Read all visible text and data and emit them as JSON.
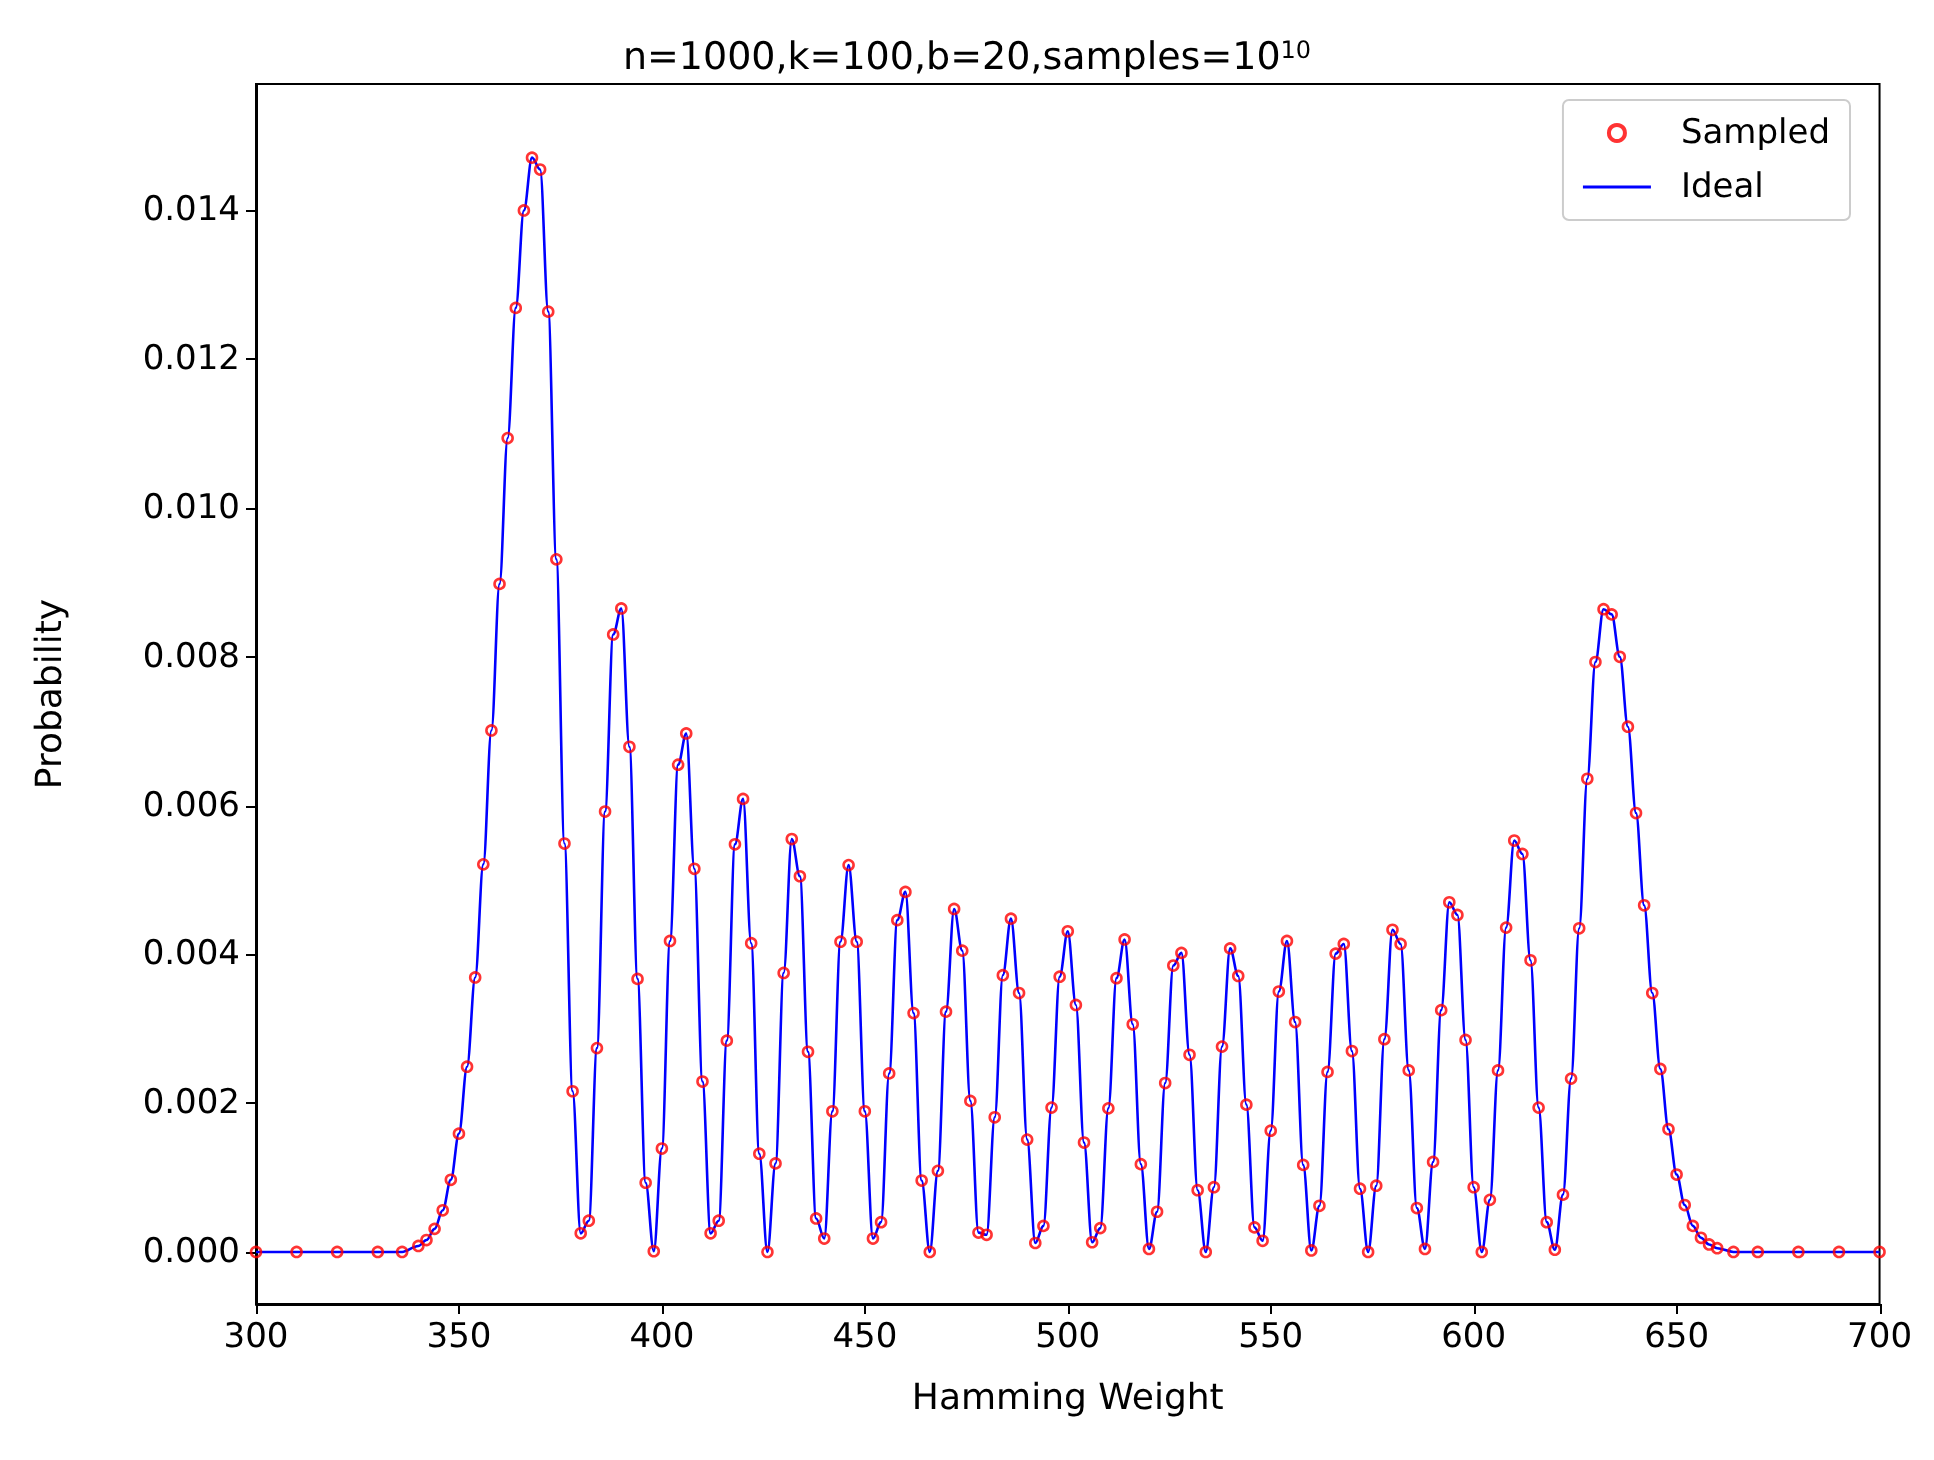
{
  "chart_data": {
    "type": "scatter",
    "title": "n=1000,k=100,b=20,samples=10$^{10}$",
    "xlabel": "Hamming Weight",
    "ylabel": "Probability",
    "x": [
      300,
      310,
      320,
      330,
      336,
      340,
      342,
      344,
      346,
      348,
      350,
      352,
      354,
      356,
      358,
      360,
      362,
      364,
      366,
      368,
      370,
      372,
      374,
      376,
      378,
      380,
      382,
      384,
      386,
      388,
      390,
      392,
      394,
      396,
      398,
      400,
      402,
      404,
      406,
      408,
      410,
      412,
      414,
      416,
      418,
      420,
      422,
      424,
      426,
      428,
      430,
      432,
      434,
      436,
      438,
      440,
      442,
      444,
      446,
      448,
      450,
      452,
      454,
      456,
      458,
      460,
      462,
      464,
      466,
      468,
      470,
      472,
      474,
      476,
      478,
      480,
      482,
      484,
      486,
      488,
      490,
      492,
      494,
      496,
      498,
      500,
      502,
      504,
      506,
      508,
      510,
      512,
      514,
      516,
      518,
      520,
      522,
      524,
      526,
      528,
      530,
      532,
      534,
      536,
      538,
      540,
      542,
      544,
      546,
      548,
      550,
      552,
      554,
      556,
      558,
      560,
      562,
      564,
      566,
      568,
      570,
      572,
      574,
      576,
      578,
      580,
      582,
      584,
      586,
      588,
      590,
      592,
      594,
      596,
      598,
      600,
      602,
      604,
      606,
      608,
      610,
      612,
      614,
      616,
      618,
      620,
      622,
      624,
      626,
      628,
      630,
      632,
      634,
      636,
      638,
      640,
      642,
      644,
      646,
      648,
      650,
      652,
      654,
      656,
      658,
      660,
      664,
      670,
      680,
      690,
      700
    ],
    "series": [
      {
        "name": "Sampled",
        "type": "scatter",
        "marker": "circle",
        "color": "#ff0000",
        "values": [
          0,
          0,
          0,
          0,
          0,
          8e-05,
          0.00016,
          0.00031,
          0.00056,
          0.00097,
          0.00159,
          0.00249,
          0.00369,
          0.00521,
          0.00701,
          0.00898,
          0.01094,
          0.01269,
          0.014,
          0.01471,
          0.01455,
          0.01264,
          0.00931,
          0.00549,
          0.00216,
          0.00025,
          0.00042,
          0.00274,
          0.00592,
          0.0083,
          0.00865,
          0.00679,
          0.00367,
          0.00093,
          1e-05,
          0.00139,
          0.00418,
          0.00655,
          0.00697,
          0.00515,
          0.00229,
          0.00025,
          0.00042,
          0.00284,
          0.00548,
          0.00609,
          0.00415,
          0.00132,
          0,
          0.00119,
          0.00375,
          0.00555,
          0.00505,
          0.00269,
          0.00045,
          0.00018,
          0.00189,
          0.00417,
          0.0052,
          0.00417,
          0.00189,
          0.00018,
          0.0004,
          0.0024,
          0.00446,
          0.00484,
          0.00321,
          0.00096,
          0,
          0.00109,
          0.00323,
          0.00461,
          0.00405,
          0.00203,
          0.00026,
          0.00023,
          0.00181,
          0.00372,
          0.00448,
          0.00348,
          0.00151,
          0.00012,
          0.00035,
          0.00194,
          0.0037,
          0.00431,
          0.00332,
          0.00147,
          0.00013,
          0.00032,
          0.00193,
          0.00368,
          0.0042,
          0.00306,
          0.00118,
          4e-05,
          0.00054,
          0.00227,
          0.00385,
          0.00402,
          0.00265,
          0.00083,
          0,
          0.00087,
          0.00276,
          0.00408,
          0.00371,
          0.00198,
          0.00033,
          0.00015,
          0.00163,
          0.0035,
          0.00418,
          0.00309,
          0.00117,
          2e-05,
          0.00062,
          0.00242,
          0.00401,
          0.00414,
          0.0027,
          0.00085,
          0,
          0.00089,
          0.00286,
          0.00433,
          0.00414,
          0.00244,
          0.00059,
          4e-05,
          0.00121,
          0.00325,
          0.0047,
          0.00453,
          0.00285,
          0.00087,
          0,
          0.0007,
          0.00244,
          0.00436,
          0.00553,
          0.00535,
          0.00392,
          0.00194,
          0.0004,
          3e-05,
          0.00077,
          0.00233,
          0.00435,
          0.00636,
          0.00793,
          0.00864,
          0.00857,
          0.008,
          0.00706,
          0.0059,
          0.00466,
          0.00348,
          0.00246,
          0.00165,
          0.00104,
          0.00063,
          0.00035,
          0.00019,
          0.0001,
          5e-05,
          0,
          0,
          0,
          0,
          0
        ]
      },
      {
        "name": "Ideal",
        "type": "line",
        "marker": "none",
        "line_style": "solid",
        "color": "#0000ff",
        "values": [
          0,
          0,
          0,
          0,
          0,
          8e-05,
          0.00016,
          0.00031,
          0.00056,
          0.00097,
          0.00159,
          0.00249,
          0.00369,
          0.00521,
          0.00701,
          0.00898,
          0.01094,
          0.01269,
          0.014,
          0.01471,
          0.01455,
          0.01264,
          0.00931,
          0.00549,
          0.00216,
          0.00025,
          0.00042,
          0.00274,
          0.00592,
          0.0083,
          0.00865,
          0.00679,
          0.00367,
          0.00093,
          1e-05,
          0.00139,
          0.00418,
          0.00655,
          0.00697,
          0.00515,
          0.00229,
          0.00025,
          0.00042,
          0.00284,
          0.00548,
          0.00609,
          0.00415,
          0.00132,
          0,
          0.00119,
          0.00375,
          0.00555,
          0.00505,
          0.00269,
          0.00045,
          0.00018,
          0.00189,
          0.00417,
          0.0052,
          0.00417,
          0.00189,
          0.00018,
          0.0004,
          0.0024,
          0.00446,
          0.00484,
          0.00321,
          0.00096,
          0,
          0.00109,
          0.00323,
          0.00461,
          0.00405,
          0.00203,
          0.00026,
          0.00023,
          0.00181,
          0.00372,
          0.00448,
          0.00348,
          0.00151,
          0.00012,
          0.00035,
          0.00194,
          0.0037,
          0.00431,
          0.00332,
          0.00147,
          0.00013,
          0.00032,
          0.00193,
          0.00368,
          0.0042,
          0.00306,
          0.00118,
          4e-05,
          0.00054,
          0.00227,
          0.00385,
          0.00402,
          0.00265,
          0.00083,
          0,
          0.00087,
          0.00276,
          0.00408,
          0.00371,
          0.00198,
          0.00033,
          0.00015,
          0.00163,
          0.0035,
          0.00418,
          0.00309,
          0.00117,
          2e-05,
          0.00062,
          0.00242,
          0.00401,
          0.00414,
          0.0027,
          0.00085,
          0,
          0.00089,
          0.00286,
          0.00433,
          0.00414,
          0.00244,
          0.00059,
          4e-05,
          0.00121,
          0.00325,
          0.0047,
          0.00453,
          0.00285,
          0.00087,
          0,
          0.0007,
          0.00244,
          0.00436,
          0.00553,
          0.00535,
          0.00392,
          0.00194,
          0.0004,
          3e-05,
          0.00077,
          0.00233,
          0.00435,
          0.00636,
          0.00793,
          0.00864,
          0.00857,
          0.008,
          0.00706,
          0.0059,
          0.00466,
          0.00348,
          0.00246,
          0.00165,
          0.00104,
          0.00063,
          0.00035,
          0.00019,
          0.0001,
          5e-05,
          0,
          0,
          0,
          0,
          0
        ]
      }
    ],
    "xlim": [
      300,
      700
    ],
    "xticks": [
      300,
      350,
      400,
      450,
      500,
      550,
      600,
      650,
      700
    ],
    "ylim": [
      -0.0007,
      0.0157
    ],
    "yticks": [
      {
        "value": 0,
        "label": "0.000"
      },
      {
        "value": 0.002,
        "label": "0.002"
      },
      {
        "value": 0.004,
        "label": "0.004"
      },
      {
        "value": 0.006,
        "label": "0.006"
      },
      {
        "value": 0.008,
        "label": "0.008"
      },
      {
        "value": 0.01,
        "label": "0.010"
      },
      {
        "value": 0.012,
        "label": "0.012"
      },
      {
        "value": 0.014,
        "label": "0.014"
      }
    ],
    "grid": false,
    "legend": "top right"
  }
}
